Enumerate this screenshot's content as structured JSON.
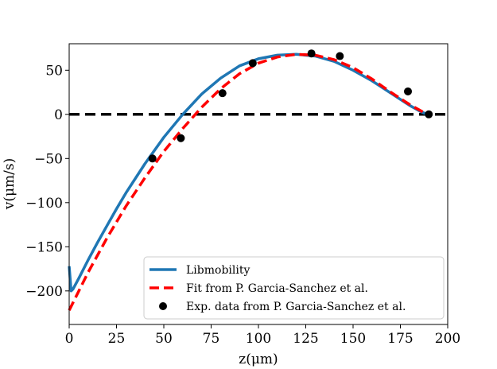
{
  "chart_data": {
    "type": "line",
    "xlabel": "z(μm)",
    "ylabel": "v(μm/s)",
    "xlim": [
      0,
      200
    ],
    "ylim": [
      -238,
      80
    ],
    "xticks": [
      0,
      25,
      50,
      75,
      100,
      125,
      150,
      175,
      200
    ],
    "yticks": [
      50,
      0,
      -50,
      -100,
      -150,
      -200
    ],
    "xtick_labels": [
      "0",
      "25",
      "50",
      "75",
      "100",
      "125",
      "150",
      "175",
      "200"
    ],
    "ytick_labels": [
      "50",
      "0",
      "−50",
      "−100",
      "−150",
      "−200"
    ],
    "grid": false,
    "legend_position": "bottom-right",
    "reference_line": {
      "y": 0,
      "style": "dashed",
      "color": "#000000"
    },
    "series": [
      {
        "name": "Libmobility",
        "style": "solid",
        "color": "#1f77b4",
        "x": [
          0,
          1,
          2,
          5,
          10,
          15,
          20,
          25,
          30,
          40,
          50,
          60,
          70,
          80,
          90,
          100,
          110,
          120,
          130,
          140,
          150,
          160,
          170,
          180,
          185,
          190
        ],
        "y": [
          -172,
          -200,
          -198,
          -186,
          -165,
          -145,
          -126,
          -107,
          -89,
          -56,
          -26,
          0,
          23,
          41,
          55,
          63,
          67,
          68,
          66,
          60,
          50,
          38,
          24,
          10,
          4,
          -1
        ]
      },
      {
        "name": "Fit from P. Garcia-Sanchez et al.",
        "style": "dashed",
        "color": "#ff0000",
        "x": [
          0,
          10,
          20,
          30,
          40,
          50,
          60,
          70,
          80,
          90,
          100,
          110,
          120,
          130,
          140,
          150,
          160,
          170,
          180,
          190
        ],
        "y": [
          -222,
          -179,
          -140,
          -104,
          -72,
          -42,
          -16,
          8,
          29,
          46,
          58,
          65,
          68,
          67,
          62,
          53,
          40,
          25,
          11,
          -1
        ]
      },
      {
        "name": "Exp. data from P. Garcia-Sanchez et al.",
        "style": "markers",
        "color": "#000000",
        "x": [
          44,
          59,
          81,
          97,
          128,
          143,
          179,
          190
        ],
        "y": [
          -50,
          -27,
          24,
          58,
          69,
          66,
          26,
          0
        ]
      }
    ]
  }
}
